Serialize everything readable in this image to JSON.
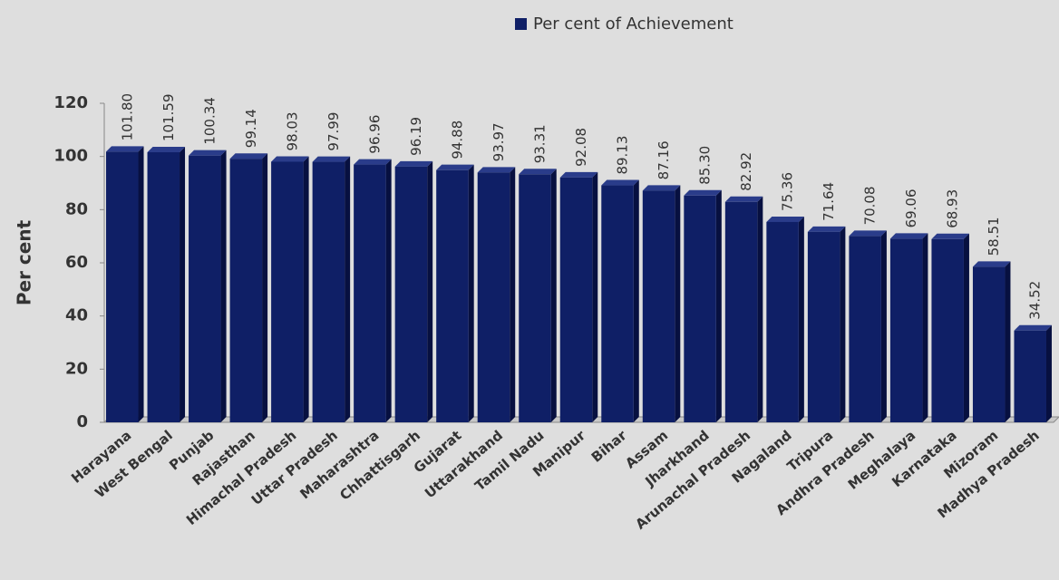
{
  "chart_data": {
    "type": "bar",
    "y_label": "Per cent",
    "legend": "top",
    "categories": [
      "Harayana",
      "West Bengal",
      "Punjab",
      "Rajasthan",
      "Himachal Pradesh",
      "Uttar Pradesh",
      "Maharashtra",
      "Chhattisgarh",
      "Gujarat",
      "Uttarakhand",
      "Tamil Nadu",
      "Manipur",
      "Bihar",
      "Assam",
      "Jharkhand",
      "Arunachal Pradesh",
      "Nagaland",
      "Tripura",
      "Andhra Pradesh",
      "Meghalaya",
      "Karnataka",
      "Mizoram",
      "Madhya Pradesh"
    ],
    "series": [
      {
        "name": "Per cent of Achievement",
        "color": "#0f1f66",
        "values": [
          101.8,
          101.59,
          100.34,
          99.14,
          98.03,
          97.99,
          96.96,
          96.19,
          94.88,
          93.97,
          93.31,
          92.08,
          89.13,
          87.16,
          85.3,
          82.92,
          75.36,
          71.64,
          70.08,
          69.06,
          68.93,
          58.51,
          34.52
        ],
        "value_labels": [
          "101.80",
          "101.59",
          "100.34",
          "99.14",
          "98.03",
          "97.99",
          "96.96",
          "96.19",
          "94.88",
          "93.97",
          "93.31",
          "92.08",
          "89.13",
          "87.16",
          "85.30",
          "82.92",
          "75.36",
          "71.64",
          "70.08",
          "69.06",
          "68.93",
          "58.51",
          "34.52"
        ]
      }
    ],
    "ylim": [
      0,
      120
    ],
    "yticks": [
      0,
      20,
      40,
      60,
      80,
      100,
      120
    ]
  }
}
